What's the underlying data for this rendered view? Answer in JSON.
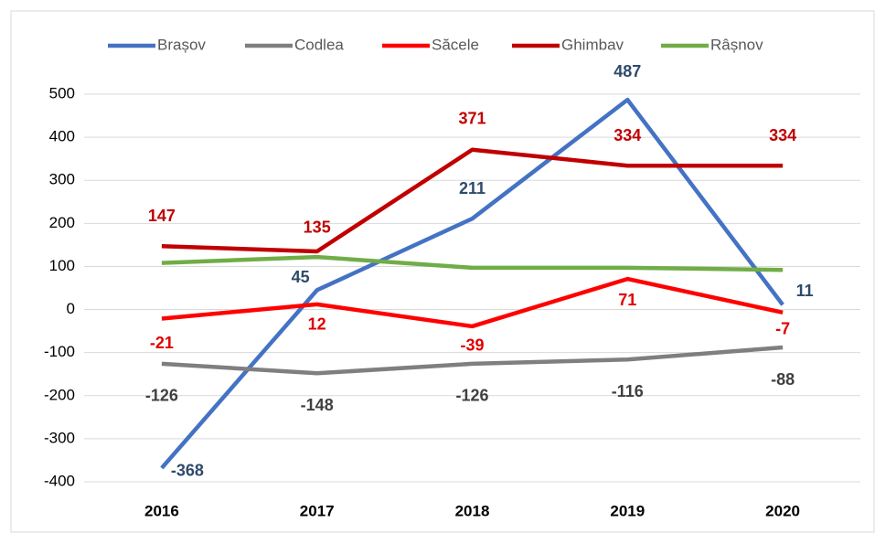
{
  "chart_data": {
    "type": "line",
    "categories": [
      "2016",
      "2017",
      "2018",
      "2019",
      "2020"
    ],
    "series": [
      {
        "name": "Brașov",
        "color": "#4472c4",
        "label_color": "#2e4a6b",
        "values": [
          -368,
          45,
          211,
          487,
          11
        ]
      },
      {
        "name": "Codlea",
        "color": "#7f7f7f",
        "label_color": "#404040",
        "values": [
          -126,
          -148,
          -126,
          -116,
          -88
        ]
      },
      {
        "name": "Săcele",
        "color": "#ff0000",
        "label_color": "#e00000",
        "values": [
          -21,
          12,
          -39,
          71,
          -7
        ]
      },
      {
        "name": "Ghimbav",
        "color": "#c00000",
        "label_color": "#c00000",
        "values": [
          147,
          135,
          371,
          334,
          334
        ]
      },
      {
        "name": "Râșnov",
        "color": "#70ad47",
        "values": [
          108,
          122,
          97,
          97,
          92
        ]
      }
    ],
    "ylim": [
      -400,
      500
    ],
    "yticks": [
      -400,
      -300,
      -200,
      -100,
      0,
      100,
      200,
      300,
      400,
      500
    ],
    "grid": true,
    "legend": "top"
  }
}
